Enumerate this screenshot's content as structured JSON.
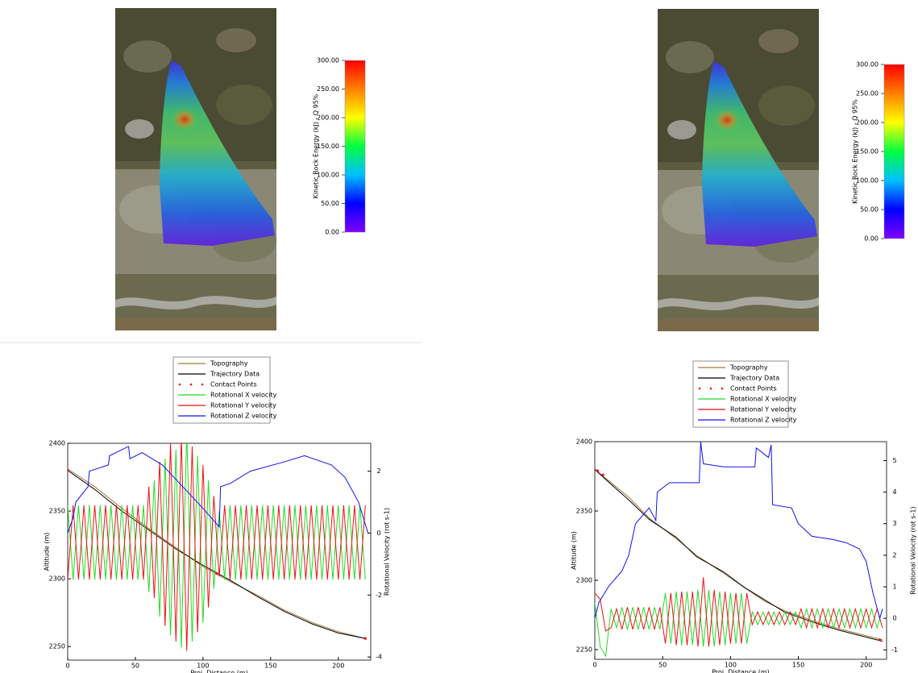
{
  "chart_data": [
    {
      "type": "colorbar",
      "title": "Kinetic Rock Energy (kJ) - Q 95%",
      "ylim": [
        0,
        300
      ],
      "yticks": [
        {
          "value": 0,
          "label": "0.00"
        },
        {
          "value": 50,
          "label": "50.00"
        },
        {
          "value": 100,
          "label": "100.00"
        },
        {
          "value": 150,
          "label": "150.00"
        },
        {
          "value": 200,
          "label": "200.00"
        },
        {
          "value": 250,
          "label": "250.00"
        },
        {
          "value": 300,
          "label": "300.00"
        }
      ],
      "colors": [
        "#8000ff",
        "#0000ff",
        "#00c0ff",
        "#00ff40",
        "#ffff00",
        "#ff8000",
        "#ff0000"
      ]
    },
    {
      "type": "line",
      "xlabel": "Proj. Distance (m)",
      "ylabel": "Altitude (m)",
      "y2label": "Rotational Velocity (rot s-1)",
      "xlim": [
        0,
        224
      ],
      "xticks": [
        0,
        50,
        100,
        150,
        200
      ],
      "ylim": [
        2240,
        2400
      ],
      "yticks": [
        2250,
        2300,
        2350,
        2400
      ],
      "y2lim": [
        -4.1,
        2.9
      ],
      "y2ticks": [
        -4,
        -2,
        0,
        2
      ],
      "series": [
        {
          "name": "Topography",
          "color": "#a0783c",
          "x": [
            0,
            20,
            40,
            60,
            80,
            100,
            120,
            140,
            160,
            180,
            200,
            220
          ],
          "values": [
            2381,
            2368,
            2352,
            2337,
            2323,
            2309,
            2298,
            2288,
            2277,
            2268,
            2261,
            2256
          ]
        },
        {
          "name": "Trajectory Data",
          "color": "#000000",
          "x": [
            0,
            20,
            40,
            60,
            80,
            100,
            120,
            140,
            160,
            180,
            200,
            220
          ],
          "values": [
            2380,
            2366,
            2350,
            2336,
            2322,
            2310,
            2299,
            2287,
            2276,
            2267,
            2260,
            2256
          ]
        },
        {
          "name": "Contact Points",
          "color": "#ff0000",
          "style": "markers",
          "x": [
            0,
            110,
            220
          ],
          "values": [
            2380,
            2304,
            2256
          ]
        },
        {
          "name": "Rotational X velocity",
          "color": "#22dd22",
          "axis": "y2",
          "x": [
            0,
            4,
            8,
            12,
            16,
            20,
            24,
            28,
            32,
            36,
            40,
            44,
            48,
            52,
            56,
            60,
            64,
            68,
            72,
            76,
            80,
            84,
            88,
            92,
            96,
            100,
            104,
            108,
            112,
            116,
            120,
            124,
            128,
            132,
            136,
            140,
            144,
            148,
            152,
            156,
            160,
            164,
            168,
            172,
            176,
            180,
            184,
            188,
            192,
            196,
            200,
            204,
            208,
            212,
            216,
            220
          ],
          "values": [
            0.9,
            -1.5,
            0.9,
            -1.5,
            0.9,
            -1.5,
            0.9,
            -1.5,
            0.9,
            -1.5,
            0.9,
            -1.5,
            0.9,
            -1.5,
            0.9,
            -1.9,
            1.7,
            -2.7,
            2.4,
            -3.3,
            2.7,
            -3.7,
            3.3,
            -3.5,
            2.5,
            -2.9,
            1.7,
            -1.8,
            0.7,
            -1.5,
            0.9,
            -1.5,
            0.9,
            -1.5,
            0.9,
            -1.5,
            0.9,
            -1.5,
            0.9,
            -1.5,
            0.9,
            -1.5,
            0.9,
            -1.5,
            0.9,
            -1.5,
            0.9,
            -1.5,
            0.9,
            -1.5,
            0.9,
            -1.5,
            0.9,
            -1.5,
            0.9,
            -1.5
          ]
        },
        {
          "name": "Rotational Y velocity",
          "color": "#ee1111",
          "axis": "y2",
          "x": [
            0,
            4,
            8,
            12,
            16,
            20,
            24,
            28,
            32,
            36,
            40,
            44,
            48,
            52,
            56,
            60,
            64,
            68,
            72,
            76,
            80,
            84,
            88,
            92,
            96,
            100,
            104,
            108,
            112,
            116,
            120,
            124,
            128,
            132,
            136,
            140,
            144,
            148,
            152,
            156,
            160,
            164,
            168,
            172,
            176,
            180,
            184,
            188,
            192,
            196,
            200,
            204,
            208,
            212,
            216,
            220
          ],
          "values": [
            -1.5,
            0.9,
            -1.5,
            0.9,
            -1.5,
            0.9,
            -1.5,
            0.9,
            -1.5,
            0.9,
            -1.5,
            0.9,
            -1.5,
            0.9,
            -1.5,
            1.5,
            -2.1,
            2.3,
            -3.0,
            2.9,
            -3.5,
            3.1,
            -3.8,
            2.8,
            -3.2,
            2.2,
            -2.4,
            1.2,
            -1.4,
            0.9,
            -1.5,
            0.9,
            -1.5,
            0.9,
            -1.5,
            0.9,
            -1.5,
            0.9,
            -1.5,
            0.9,
            -1.5,
            0.9,
            -1.5,
            0.9,
            -1.5,
            0.9,
            -1.5,
            0.9,
            -1.5,
            0.9,
            -1.5,
            0.9,
            -1.5,
            0.9,
            -1.5,
            0.9
          ]
        },
        {
          "name": "Rotational Z velocity",
          "color": "#1111ee",
          "axis": "y2",
          "x": [
            0,
            4,
            6,
            15,
            16,
            30,
            31,
            45,
            46,
            55,
            70,
            85,
            100,
            112,
            113,
            120,
            135,
            160,
            175,
            195,
            205,
            215,
            222
          ],
          "values": [
            0,
            0.5,
            1,
            1.5,
            2,
            2.2,
            2.5,
            2.8,
            2.4,
            2.6,
            2.2,
            1.5,
            0.8,
            0.2,
            1.5,
            1.6,
            2.0,
            2.3,
            2.5,
            2.2,
            1.8,
            1.0,
            0
          ]
        }
      ]
    },
    {
      "type": "colorbar",
      "title": "Kinetic Rock Energy (kJ) - Q 95%",
      "ylim": [
        0,
        300
      ],
      "yticks": [
        {
          "value": 0,
          "label": "0.00"
        },
        {
          "value": 50,
          "label": "50.00"
        },
        {
          "value": 100,
          "label": "100.00"
        },
        {
          "value": 150,
          "label": "150.00"
        },
        {
          "value": 200,
          "label": "200.00"
        },
        {
          "value": 250,
          "label": "250.00"
        },
        {
          "value": 300,
          "label": "300.00"
        }
      ],
      "colors": [
        "#8000ff",
        "#0000ff",
        "#00c0ff",
        "#00ff40",
        "#ffff00",
        "#ff8000",
        "#ff0000"
      ]
    },
    {
      "type": "line",
      "xlabel": "Proj. Distance (m)",
      "ylabel": "Altitude (m)",
      "y2label": "Rotational Velocity (rot s-1)",
      "xlim": [
        0,
        215
      ],
      "xticks": [
        0,
        50,
        100,
        150,
        200
      ],
      "ylim": [
        2243,
        2400
      ],
      "yticks": [
        2250,
        2300,
        2350,
        2400
      ],
      "y2lim": [
        -1.3,
        5.6
      ],
      "y2ticks": [
        -1,
        0,
        1,
        2,
        3,
        4,
        5
      ],
      "series": [
        {
          "name": "Topography",
          "color": "#a0783c",
          "x": [
            0,
            10,
            25,
            40,
            60,
            75,
            95,
            110,
            125,
            140,
            160,
            180,
            200,
            212
          ],
          "values": [
            2380,
            2372,
            2360,
            2345,
            2330,
            2318,
            2305,
            2295,
            2285,
            2278,
            2271,
            2265,
            2260,
            2257
          ]
        },
        {
          "name": "Trajectory Data",
          "color": "#000000",
          "x": [
            0,
            10,
            25,
            40,
            60,
            75,
            95,
            110,
            125,
            140,
            160,
            180,
            200,
            212
          ],
          "values": [
            2380,
            2371,
            2358,
            2344,
            2331,
            2317,
            2306,
            2295,
            2286,
            2277,
            2270,
            2264,
            2259,
            2256
          ]
        },
        {
          "name": "Contact Points",
          "color": "#ff0000",
          "style": "markers",
          "x": [
            2,
            6,
            210
          ],
          "values": [
            2379,
            2376,
            2257
          ]
        },
        {
          "name": "Rotational X velocity",
          "color": "#22dd22",
          "axis": "y2",
          "x": [
            0,
            4,
            8,
            12,
            16,
            20,
            24,
            28,
            32,
            36,
            40,
            44,
            48,
            52,
            56,
            60,
            64,
            68,
            72,
            76,
            80,
            84,
            88,
            92,
            96,
            100,
            104,
            108,
            112,
            116,
            120,
            124,
            128,
            132,
            136,
            140,
            144,
            148,
            152,
            156,
            160,
            164,
            168,
            172,
            176,
            180,
            184,
            188,
            192,
            196,
            200,
            204,
            208,
            212
          ],
          "values": [
            0.5,
            -0.9,
            -1.2,
            0.3,
            -0.3,
            0.35,
            -0.35,
            0.35,
            -0.35,
            0.35,
            -0.35,
            0.35,
            -0.35,
            0.8,
            -0.8,
            0.85,
            -0.85,
            0.85,
            -0.85,
            0.9,
            -0.9,
            0.9,
            -0.9,
            0.85,
            -0.85,
            0.8,
            -0.8,
            0.8,
            -0.8,
            0.2,
            -0.2,
            0.2,
            -0.2,
            0.2,
            -0.2,
            0.2,
            -0.2,
            0.2,
            -0.3,
            0.3,
            -0.3,
            0.3,
            -0.3,
            0.3,
            -0.3,
            0.3,
            -0.3,
            0.3,
            -0.3,
            0.3,
            -0.3,
            0.3,
            -0.3,
            0.3
          ]
        },
        {
          "name": "Rotational Y velocity",
          "color": "#ee1111",
          "axis": "y2",
          "x": [
            0,
            4,
            8,
            12,
            16,
            20,
            24,
            28,
            32,
            36,
            40,
            44,
            48,
            52,
            56,
            60,
            64,
            68,
            72,
            76,
            80,
            84,
            88,
            92,
            96,
            100,
            104,
            108,
            112,
            116,
            120,
            124,
            128,
            132,
            136,
            140,
            144,
            148,
            152,
            156,
            160,
            164,
            168,
            172,
            176,
            180,
            184,
            188,
            192,
            196,
            200,
            204,
            208,
            212
          ],
          "values": [
            0.8,
            0.6,
            -0.4,
            -0.3,
            0.3,
            -0.35,
            0.35,
            -0.35,
            0.35,
            -0.35,
            0.35,
            -0.35,
            0.35,
            -0.8,
            0.8,
            -0.85,
            0.85,
            -0.85,
            0.85,
            -0.9,
            1.3,
            -0.9,
            0.9,
            -0.85,
            0.85,
            -0.8,
            0.8,
            -0.8,
            0.8,
            -0.2,
            0.2,
            -0.2,
            0.2,
            -0.2,
            0.2,
            -0.2,
            0.2,
            -0.2,
            0.3,
            -0.3,
            0.3,
            -0.3,
            0.3,
            -0.3,
            0.3,
            -0.3,
            0.3,
            -0.3,
            0.3,
            -0.3,
            0.3,
            -0.3,
            0.3,
            -0.3
          ]
        },
        {
          "name": "Rotational Z velocity",
          "color": "#1111ee",
          "axis": "y2",
          "x": [
            0,
            3,
            10,
            20,
            25,
            30,
            40,
            45,
            46,
            55,
            77,
            78,
            80,
            95,
            118,
            119,
            128,
            130,
            131,
            145,
            150,
            160,
            175,
            185,
            195,
            200,
            205,
            210,
            212
          ],
          "values": [
            0,
            0.5,
            1,
            1.5,
            2,
            3,
            3.5,
            3.1,
            4,
            4.3,
            4.3,
            5.6,
            4.9,
            4.8,
            4.8,
            5.4,
            5.1,
            5.5,
            3.6,
            3.5,
            3,
            2.6,
            2.5,
            2.4,
            2.2,
            1.8,
            0.8,
            0,
            0.3
          ]
        }
      ]
    }
  ]
}
